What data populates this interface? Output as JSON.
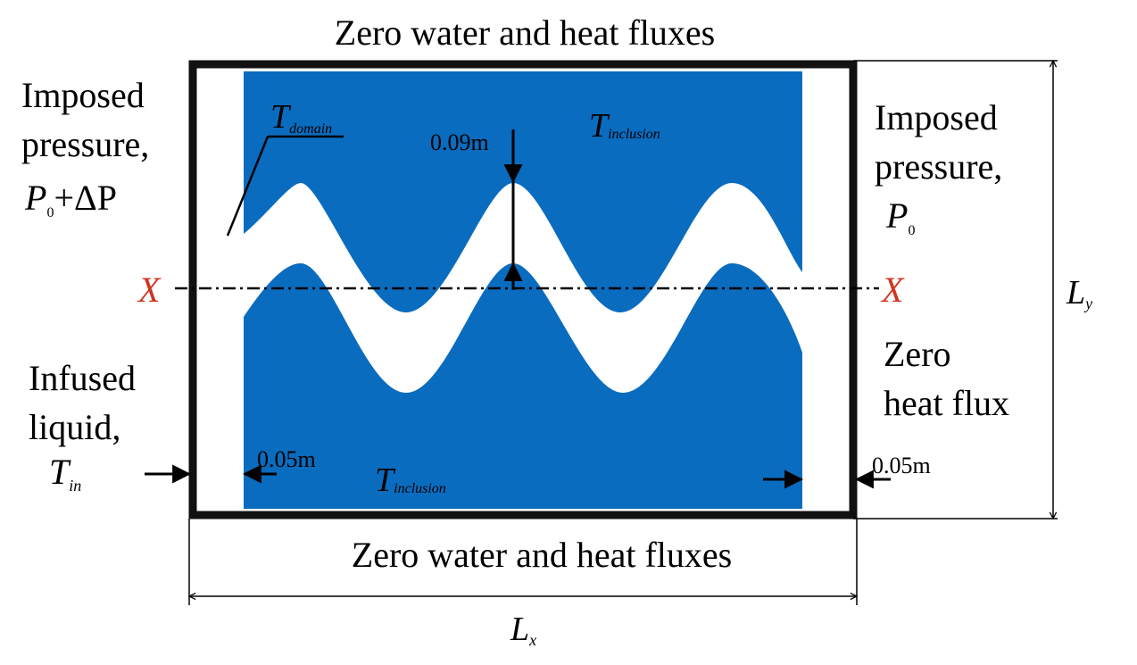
{
  "top_boundary": "Zero water and heat fluxes",
  "bottom_boundary": "Zero water and heat fluxes",
  "left_boundary": {
    "line1": "Imposed",
    "line2": "pressure,",
    "pressure_main": "P",
    "pressure_sub": "0",
    "pressure_tail": "+ΔP",
    "infused_line1": "Infused",
    "infused_line2": "liquid,",
    "temp_main": "T",
    "temp_sub": "in"
  },
  "right_boundary": {
    "line1": "Imposed",
    "line2": "pressure,",
    "pressure_main": "P",
    "pressure_sub": "0",
    "heat_line1": "Zero",
    "heat_line2": "heat flux"
  },
  "labels": {
    "t_domain_main": "T",
    "t_domain_sub": "domain",
    "t_inclusion_main": "T",
    "t_inclusion_sub": "inclusion",
    "amplitude": "0.09m",
    "left_gap": "0.05m",
    "right_gap": "0.05m",
    "axis_marker": "X",
    "lx_main": "L",
    "lx_sub": "x",
    "ly_main": "L",
    "ly_sub": "y"
  },
  "colors": {
    "inclusion_fill": "#0a6cbf",
    "border": "#111111",
    "axis_marker": "#d0341f"
  }
}
